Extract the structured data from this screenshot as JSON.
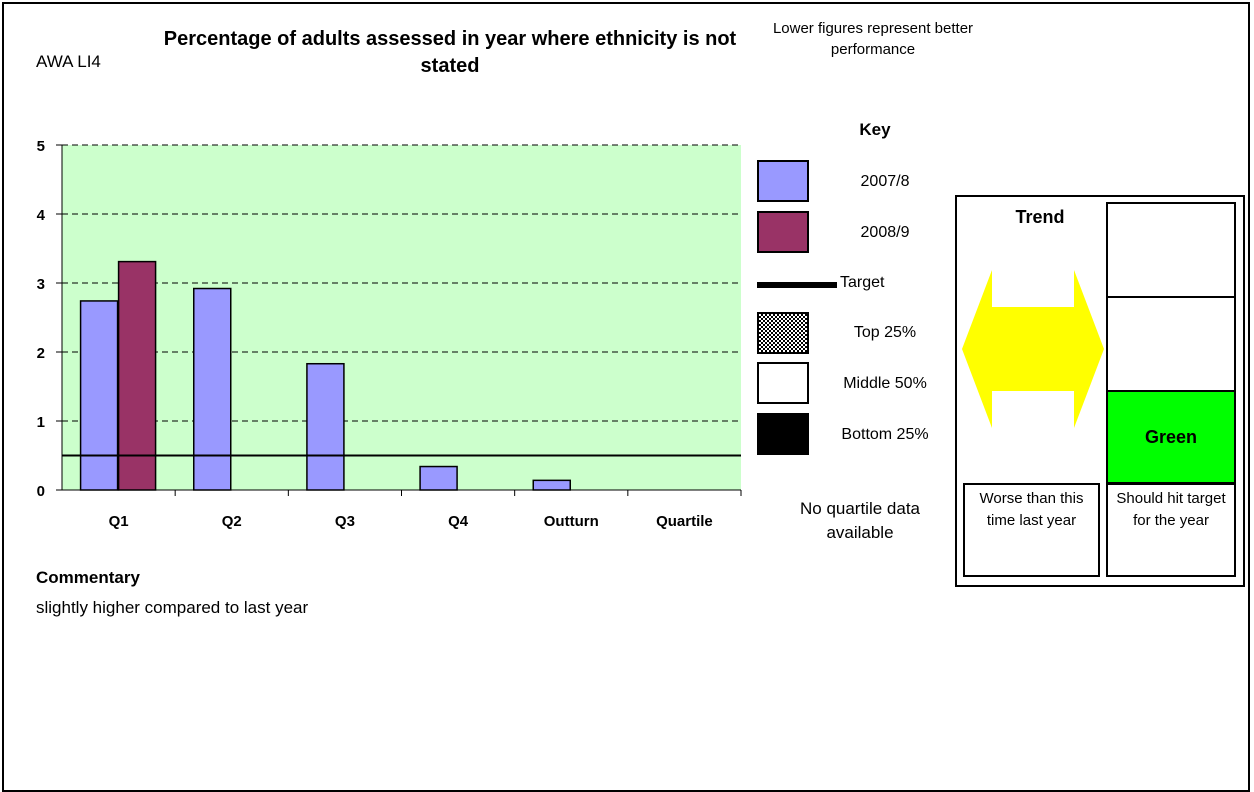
{
  "code": "AWA LI4",
  "title": "Percentage of adults assessed in year where ethnicity is not stated",
  "note": "Lower figures represent better performance",
  "chart_data": {
    "type": "bar",
    "categories": [
      "Q1",
      "Q2",
      "Q3",
      "Q4",
      "Outturn",
      "Quartile"
    ],
    "series": [
      {
        "name": "2007/8",
        "color": "#9999ff",
        "values": [
          2.74,
          2.92,
          1.83,
          0.34,
          0.14,
          null
        ]
      },
      {
        "name": "2008/9",
        "color": "#993366",
        "values": [
          3.31,
          null,
          null,
          null,
          null,
          null
        ]
      }
    ],
    "target": 0.5,
    "ylim": [
      0,
      5
    ],
    "yticks": [
      0,
      1,
      2,
      3,
      4,
      5
    ],
    "plot_background": "#ccffcc",
    "grid": "dashed horizontal"
  },
  "key": {
    "title": "Key",
    "items": [
      {
        "label": "2007/8",
        "color": "#9999ff"
      },
      {
        "label": "2008/9",
        "color": "#993366"
      },
      {
        "label": "Target"
      },
      {
        "label": "Top 25%",
        "pattern": "checker"
      },
      {
        "label": "Middle 50%",
        "color": "#ffffff"
      },
      {
        "label": "Bottom 25%",
        "color": "#000000"
      }
    ],
    "no_quartile": "No quartile data available"
  },
  "commentary": {
    "heading": "Commentary",
    "text": "slightly higher compared to last year"
  },
  "status": {
    "trend_title": "Trend",
    "trend_icon": "double-arrow-icon",
    "trend_color": "#ffff00",
    "rating": "Green",
    "rating_color": "#00ff00",
    "trend_text": "Worse than this time last year",
    "target_text": "Should hit target for the year"
  }
}
